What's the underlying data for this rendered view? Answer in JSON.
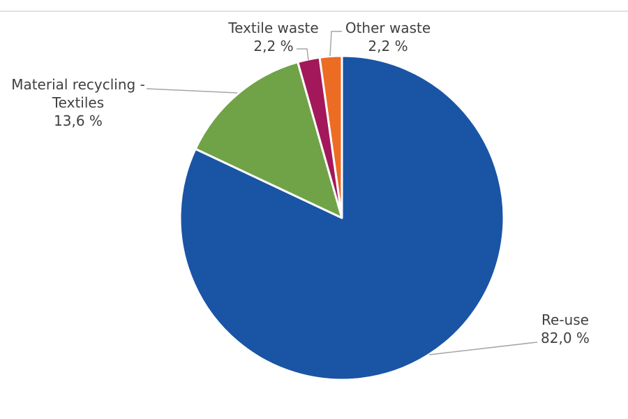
{
  "chart_data": {
    "type": "pie",
    "categories": [
      "Re-use",
      "Material recycling - Textiles",
      "Textile waste",
      "Other waste"
    ],
    "values": [
      82.0,
      13.6,
      2.2,
      2.2
    ],
    "value_labels": [
      "82,0 %",
      "13,6 %",
      "2,2 %",
      "2,2 %"
    ],
    "colors": [
      "#1a54a5",
      "#70a347",
      "#a3185b",
      "#ec6c23"
    ]
  }
}
